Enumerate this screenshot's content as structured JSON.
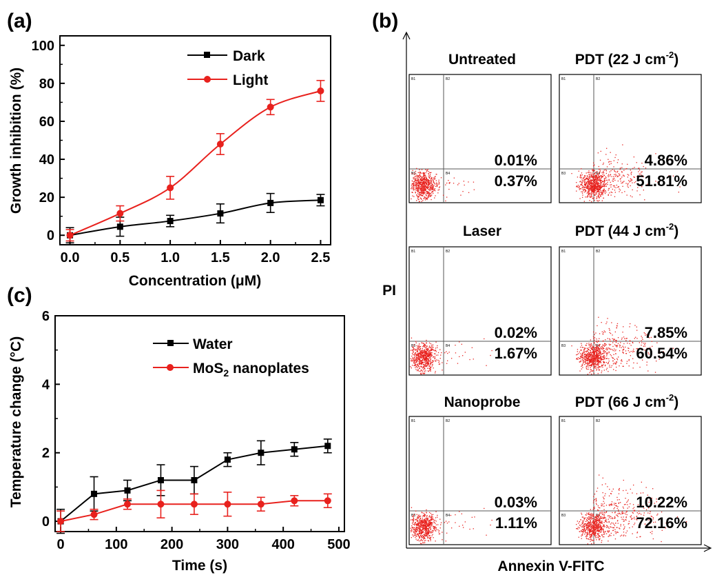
{
  "panel_labels": {
    "a": "(a)",
    "b": "(b)",
    "c": "(c)"
  },
  "colors": {
    "dark": "#000000",
    "light": "#e8211d",
    "water": "#000000",
    "mos2": "#e8211d"
  },
  "chart_data": [
    {
      "id": "a",
      "type": "line",
      "title": "",
      "xlabel": "Concentration (μM)",
      "ylabel": "Growth inhibition (%)",
      "xlim": [
        -0.1,
        2.6
      ],
      "ylim": [
        -5,
        105
      ],
      "xticks": [
        "0.0",
        "0.5",
        "1.0",
        "1.5",
        "2.0",
        "2.5"
      ],
      "yticks": [
        "0",
        "20",
        "40",
        "60",
        "80",
        "100"
      ],
      "legend": "top-center",
      "grid": false,
      "x": [
        0,
        0.5,
        1.0,
        1.5,
        2.0,
        2.5
      ],
      "series": [
        {
          "name": "Dark",
          "values": [
            0,
            4.5,
            7.5,
            11.5,
            17,
            18.5
          ],
          "errors": [
            4,
            5,
            3,
            5,
            5,
            3
          ],
          "smooth": true,
          "marker": "square"
        },
        {
          "name": "Light",
          "values": [
            0,
            11.5,
            25,
            48,
            67.5,
            76
          ],
          "errors": [
            3,
            4,
            6,
            5.5,
            4,
            5.5
          ],
          "smooth": true,
          "marker": "circle"
        }
      ]
    },
    {
      "id": "b",
      "type": "scatter",
      "title": "",
      "xlabel": "Annexin V-FITC",
      "ylabel": "PI",
      "quadrant_labels": [
        "B1",
        "B2",
        "B3",
        "B4"
      ],
      "panels": [
        {
          "title": "Untreated",
          "title_sup": "",
          "upper": "0.01%",
          "lower": "0.37%",
          "spread": 0
        },
        {
          "title": "PDT (22 J cm",
          "title_sup": "-2",
          "title_end": ")",
          "upper": "4.86%",
          "lower": "51.81%",
          "spread": 0.5
        },
        {
          "title": "Laser",
          "title_sup": "",
          "upper": "0.02%",
          "lower": "1.67%",
          "spread": 0.05
        },
        {
          "title": "PDT (44 J cm",
          "title_sup": "-2",
          "title_end": ")",
          "upper": "7.85%",
          "lower": "60.54%",
          "spread": 0.6
        },
        {
          "title": "Nanoprobe",
          "title_sup": "",
          "upper": "0.03%",
          "lower": "1.11%",
          "spread": 0.04
        },
        {
          "title": "PDT (66 J cm",
          "title_sup": "-2",
          "title_end": ")",
          "upper": "10.22%",
          "lower": "72.16%",
          "spread": 0.75
        }
      ]
    },
    {
      "id": "c",
      "type": "line",
      "title": "",
      "xlabel": "Time (s)",
      "ylabel": "Temperature change (°C)",
      "xlim": [
        -10,
        510
      ],
      "ylim": [
        -0.3,
        6
      ],
      "xticks": [
        "0",
        "100",
        "200",
        "300",
        "400",
        "500"
      ],
      "yticks": [
        "0",
        "2",
        "4",
        "6"
      ],
      "legend": "top-center",
      "grid": false,
      "x": [
        0,
        60,
        120,
        180,
        240,
        300,
        360,
        420,
        480
      ],
      "series": [
        {
          "name": "Water",
          "values": [
            0,
            0.8,
            0.9,
            1.2,
            1.2,
            1.8,
            2.0,
            2.1,
            2.2
          ],
          "errors": [
            0.35,
            0.5,
            0.3,
            0.45,
            0.4,
            0.2,
            0.35,
            0.2,
            0.2
          ],
          "smooth": false,
          "marker": "square"
        },
        {
          "name": "MoS",
          "name_sub": "2",
          "name_end": " nanoplates",
          "values": [
            0,
            0.2,
            0.5,
            0.5,
            0.5,
            0.5,
            0.5,
            0.6,
            0.6
          ],
          "errors": [
            0.3,
            0.15,
            0.15,
            0.4,
            0.3,
            0.35,
            0.2,
            0.15,
            0.2
          ],
          "smooth": false,
          "marker": "circle"
        }
      ]
    }
  ]
}
